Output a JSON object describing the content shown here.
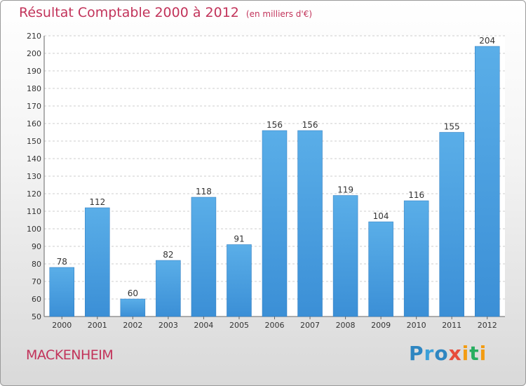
{
  "title": "Résultat Comptable 2000 à 2012",
  "unit_note": "(en milliers d'€)",
  "town": "MACKENHEIM",
  "brand": {
    "letters": [
      "P",
      "r",
      "o",
      "x",
      "i",
      "t",
      "i"
    ],
    "colors": [
      "#2e86c1",
      "#3aa0d9",
      "#2e86c1",
      "#e74c3c",
      "#f39c12",
      "#27ae60",
      "#f39c12"
    ]
  },
  "colors": {
    "bar": "#3b8fd6",
    "bar_light": "#5aaee8",
    "accent": "#c2335a",
    "grid": "#cccccc"
  },
  "chart_data": {
    "type": "bar",
    "title": "Résultat Comptable 2000 à 2012",
    "categories": [
      "2000",
      "2001",
      "2002",
      "2003",
      "2004",
      "2005",
      "2006",
      "2007",
      "2008",
      "2009",
      "2010",
      "2011",
      "2012"
    ],
    "values": [
      78,
      112,
      60,
      82,
      118,
      91,
      156,
      156,
      119,
      104,
      116,
      155,
      204
    ],
    "ylim": [
      50,
      210
    ],
    "yticks": [
      50,
      60,
      70,
      80,
      90,
      100,
      110,
      120,
      130,
      140,
      150,
      160,
      170,
      180,
      190,
      200,
      210
    ],
    "grid": true
  }
}
